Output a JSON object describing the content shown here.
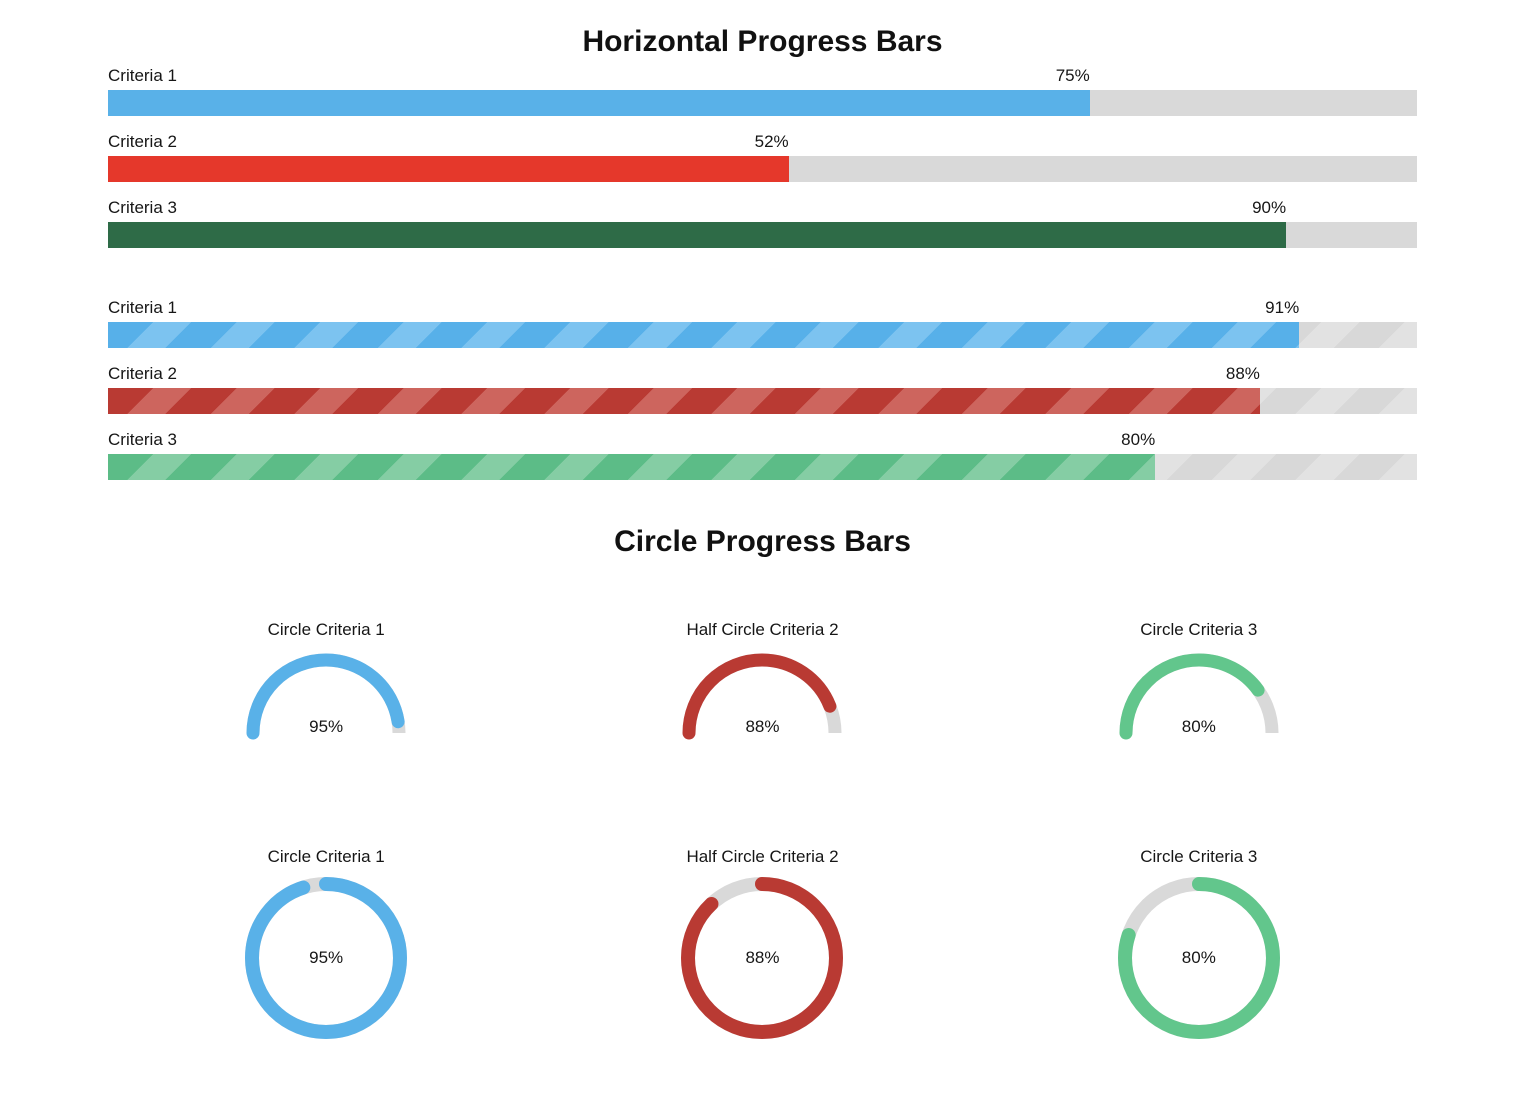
{
  "colors": {
    "track": "#d9d9d9",
    "track_stripe_dark": "#d8d8d8",
    "track_stripe_light": "#e2e2e2",
    "text": "#161616"
  },
  "horizontal": {
    "title": "Horizontal Progress Bars",
    "solid_bars": [
      {
        "label": "Criteria 1",
        "value": "75%",
        "pct": 75,
        "color": "#59b1e8"
      },
      {
        "label": "Criteria 2",
        "value": "52%",
        "pct": 52,
        "color": "#e5382b"
      },
      {
        "label": "Criteria 3",
        "value": "90%",
        "pct": 90,
        "color": "#2e6b47"
      }
    ],
    "striped_bars": [
      {
        "label": "Criteria 1",
        "value": "91%",
        "pct": 91,
        "stripe_dark": "#57b0e9",
        "stripe_light": "#7cc3f0"
      },
      {
        "label": "Criteria 2",
        "value": "88%",
        "pct": 88,
        "stripe_dark": "#b93a33",
        "stripe_light": "#cd655e"
      },
      {
        "label": "Criteria 3",
        "value": "80%",
        "pct": 80,
        "stripe_dark": "#5cbc87",
        "stripe_light": "#85cda4"
      }
    ]
  },
  "circles": {
    "title": "Circle Progress Bars",
    "half": [
      {
        "label": "Circle Criteria 1",
        "value": "95%",
        "pct": 95,
        "color": "#59b1e8"
      },
      {
        "label": "Half Circle Criteria 2",
        "value": "88%",
        "pct": 88,
        "color": "#b93a33"
      },
      {
        "label": "Circle Criteria 3",
        "value": "80%",
        "pct": 80,
        "color": "#62c68c"
      }
    ],
    "full": [
      {
        "label": "Circle Criteria 1",
        "value": "95%",
        "pct": 95,
        "color": "#59b1e8"
      },
      {
        "label": "Half Circle Criteria 2",
        "value": "88%",
        "pct": 88,
        "color": "#b93a33"
      },
      {
        "label": "Circle Criteria 3",
        "value": "80%",
        "pct": 80,
        "color": "#62c68c"
      }
    ]
  },
  "chart_data": [
    {
      "type": "bar",
      "orientation": "horizontal",
      "title": "Horizontal Progress Bars",
      "categories": [
        "Criteria 1",
        "Criteria 2",
        "Criteria 3"
      ],
      "series": [
        {
          "name": "solid",
          "values": [
            75,
            52,
            90
          ]
        },
        {
          "name": "striped",
          "values": [
            91,
            88,
            80
          ]
        }
      ],
      "unit": "%",
      "xlim": [
        0,
        100
      ],
      "grid": false,
      "value_labels": "right-aligned above fill end"
    },
    {
      "type": "pie",
      "subtype": "progress-gauge",
      "title": "Circle Progress Bars",
      "gauges": [
        {
          "label": "Circle Criteria 1",
          "shape": "half-circle",
          "value": 95
        },
        {
          "label": "Half Circle Criteria 2",
          "shape": "half-circle",
          "value": 88
        },
        {
          "label": "Circle Criteria 3",
          "shape": "half-circle",
          "value": 80
        },
        {
          "label": "Circle Criteria 1",
          "shape": "full-circle",
          "value": 95
        },
        {
          "label": "Half Circle Criteria 2",
          "shape": "full-circle",
          "value": 88
        },
        {
          "label": "Circle Criteria 3",
          "shape": "full-circle",
          "value": 80
        }
      ],
      "start_angle": "12 o'clock (half: 9 o'clock), clockwise",
      "unit": "%"
    }
  ]
}
